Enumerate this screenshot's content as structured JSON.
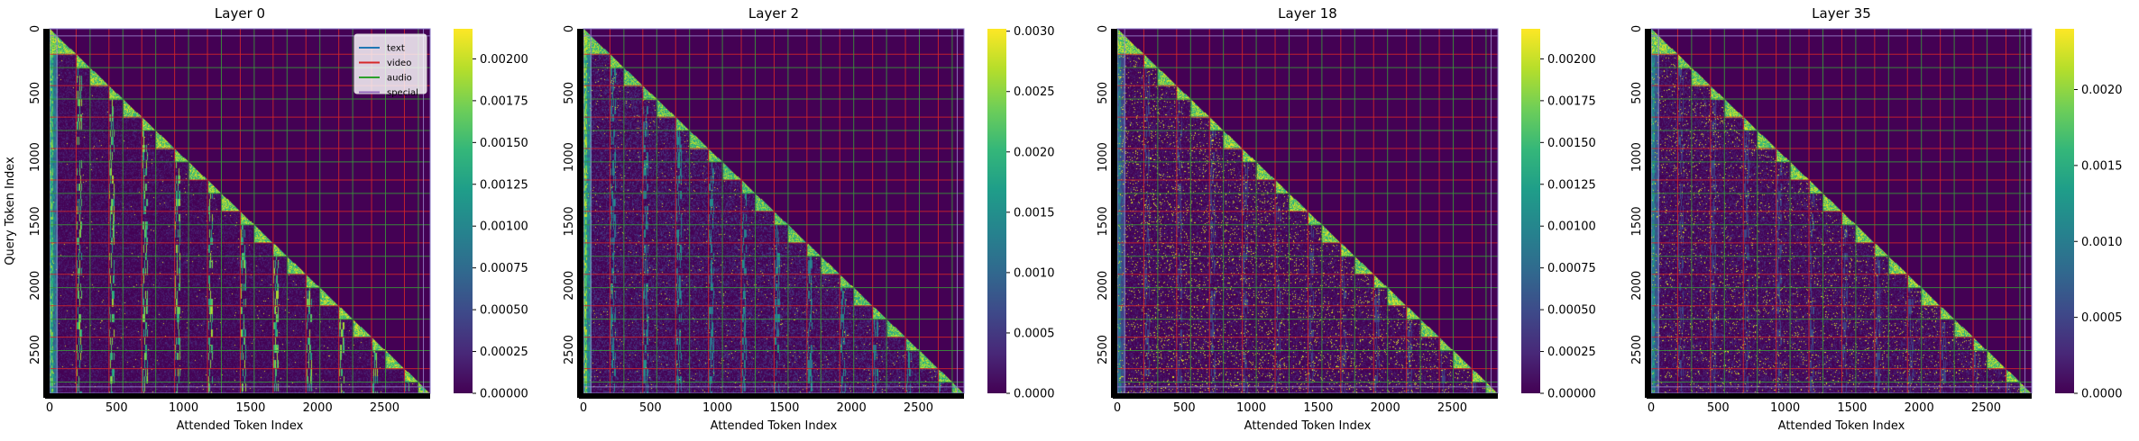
{
  "chart_data": {
    "type": "heatmap",
    "num_tokens": 2840,
    "xlabel": "Attended Token Index",
    "ylabel": "Query Token Index",
    "x_ticks": [
      "0",
      "500",
      "1000",
      "1500",
      "2000",
      "2500"
    ],
    "y_ticks": [
      "0",
      "500",
      "1000",
      "1500",
      "2000",
      "2500"
    ],
    "colormap": "viridis",
    "legend": {
      "placement": "top-right of first panel",
      "entries": [
        {
          "label": "text",
          "color": "#1f77b4"
        },
        {
          "label": "video",
          "color": "#d62728"
        },
        {
          "label": "audio",
          "color": "#2ca02c"
        },
        {
          "label": "special",
          "color": "#9467bd"
        }
      ]
    },
    "boundaries": {
      "video_starts": [
        198,
        443,
        688,
        933,
        1178,
        1423,
        1668,
        1913,
        2158,
        2403,
        2648
      ],
      "audio_starts": [
        302,
        547,
        792,
        1037,
        1282,
        1527,
        1772,
        2017,
        2262,
        2507,
        2752
      ],
      "special": [
        55,
        2790
      ]
    },
    "panels": [
      {
        "title": "Layer 0",
        "vmin": 0,
        "vmax": 0.00218,
        "cbar_ticks": [
          "0.00000",
          "0.00025",
          "0.00050",
          "0.00075",
          "0.00100",
          "0.00125",
          "0.00150",
          "0.00175",
          "0.00200"
        ],
        "cbar_values": [
          0,
          0.00025,
          0.0005,
          0.00075,
          0.001,
          0.00125,
          0.0015,
          0.00175,
          0.002
        ]
      },
      {
        "title": "Layer 2",
        "vmin": 0,
        "vmax": 0.00302,
        "cbar_ticks": [
          "0.0000",
          "0.0005",
          "0.0010",
          "0.0015",
          "0.0020",
          "0.0025",
          "0.0030"
        ],
        "cbar_values": [
          0,
          0.0005,
          0.001,
          0.0015,
          0.002,
          0.0025,
          0.003
        ]
      },
      {
        "title": "Layer 18",
        "vmin": 0,
        "vmax": 0.00218,
        "cbar_ticks": [
          "0.00000",
          "0.00025",
          "0.00050",
          "0.00075",
          "0.00100",
          "0.00125",
          "0.00150",
          "0.00175",
          "0.00200"
        ],
        "cbar_values": [
          0,
          0.00025,
          0.0005,
          0.00075,
          0.001,
          0.00125,
          0.0015,
          0.00175,
          0.002
        ]
      },
      {
        "title": "Layer 35",
        "vmin": 0,
        "vmax": 0.0024,
        "cbar_ticks": [
          "0.0000",
          "0.0005",
          "0.0010",
          "0.0015",
          "0.0020"
        ],
        "cbar_values": [
          0,
          0.0005,
          0.001,
          0.0015,
          0.002
        ]
      }
    ]
  }
}
